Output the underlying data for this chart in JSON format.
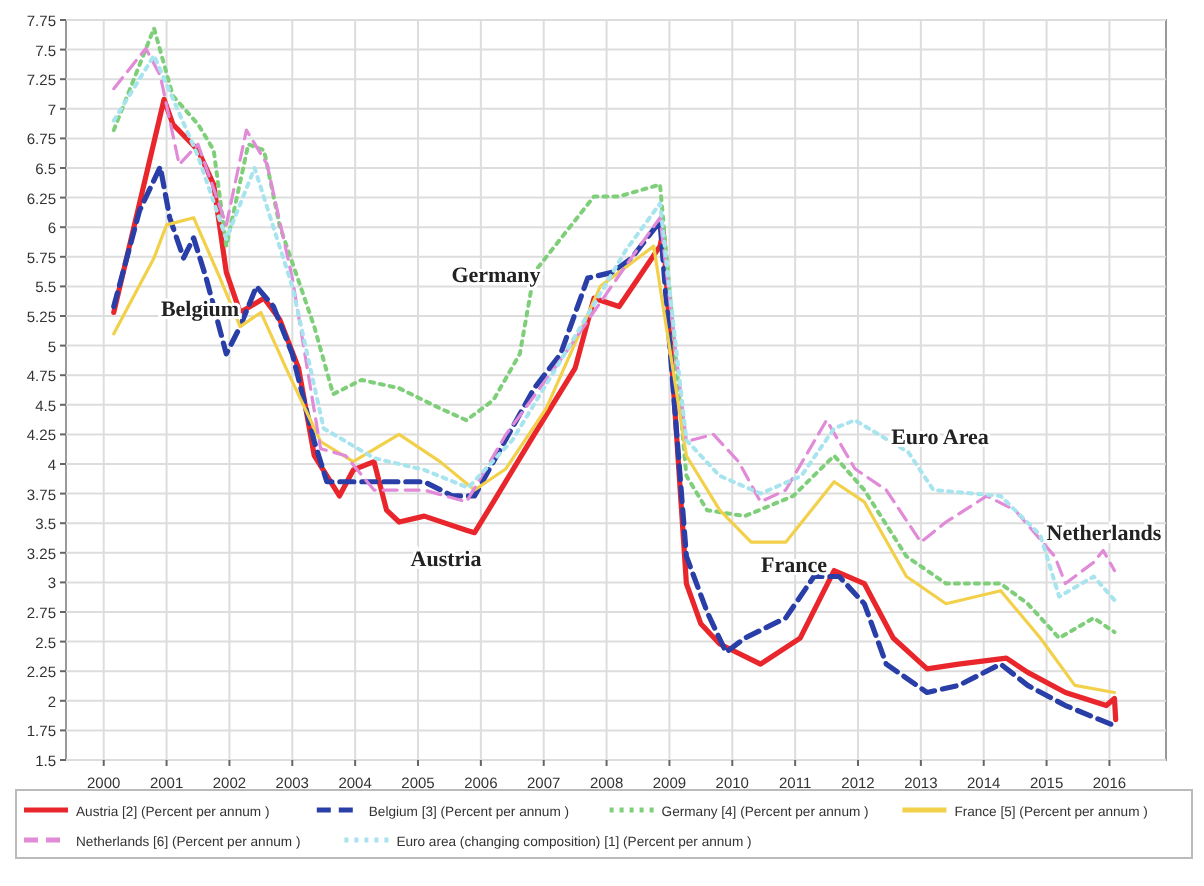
{
  "chart_data": {
    "type": "line",
    "xlim": [
      1999.4,
      2016.9
    ],
    "xticks": [
      2000,
      2001,
      2002,
      2003,
      2004,
      2005,
      2006,
      2007,
      2008,
      2009,
      2010,
      2011,
      2012,
      2013,
      2014,
      2015,
      2016
    ],
    "ylim": [
      1.5,
      7.75
    ],
    "yticks": [
      1.5,
      1.75,
      2,
      2.25,
      2.5,
      2.75,
      3,
      3.25,
      3.5,
      3.75,
      4,
      4.25,
      4.5,
      4.75,
      5,
      5.25,
      5.5,
      5.75,
      6,
      6.25,
      6.5,
      6.75,
      7,
      7.25,
      7.5,
      7.75
    ],
    "grid": true,
    "legend": "bottom",
    "marker": "none",
    "series": [
      {
        "name": "Austria [2] (Percent per annum )",
        "color": "#e8262b",
        "line_style": "solid",
        "x": [
          2000.16,
          2000.96,
          2001.1,
          2001.5,
          2001.75,
          2001.95,
          2002.17,
          2002.55,
          2002.8,
          2003.1,
          2003.35,
          2003.75,
          2003.97,
          2004.3,
          2004.5,
          2004.7,
          2005.1,
          2005.77,
          2005.9,
          2006.2,
          2006.85,
          2007.5,
          2007.8,
          2008.2,
          2008.85,
          2008.9,
          2009.27,
          2009.5,
          2009.8,
          2010.45,
          2011.08,
          2011.62,
          2012.1,
          2012.56,
          2013.1,
          2013.6,
          2014.36,
          2014.7,
          2015.3,
          2015.95,
          2016.08,
          2016.1
        ],
        "values": [
          5.28,
          7.08,
          6.87,
          6.65,
          6.36,
          5.62,
          5.28,
          5.4,
          5.22,
          4.81,
          4.07,
          3.73,
          3.95,
          4.02,
          3.61,
          3.51,
          3.56,
          3.44,
          3.42,
          3.68,
          4.25,
          4.81,
          5.4,
          5.33,
          5.84,
          5.96,
          2.99,
          2.65,
          2.48,
          2.31,
          2.53,
          3.1,
          2.99,
          2.53,
          2.27,
          2.31,
          2.36,
          2.24,
          2.07,
          1.96,
          2.02,
          1.84
        ]
      },
      {
        "name": "Belgium [3] (Percent per annum )",
        "color": "#2a3ea8",
        "line_style": "dashed",
        "x": [
          2000.16,
          2000.57,
          2000.9,
          2001.05,
          2001.27,
          2001.43,
          2001.63,
          2001.95,
          2002.17,
          2002.43,
          2002.7,
          2003.0,
          2003.35,
          2003.55,
          2004.1,
          2004.7,
          2005.1,
          2005.55,
          2005.9,
          2006.2,
          2006.85,
          2007.27,
          2007.7,
          2008.1,
          2008.4,
          2008.85,
          2009.27,
          2009.6,
          2009.9,
          2010.2,
          2010.85,
          2011.3,
          2011.7,
          2012.1,
          2012.45,
          2013.1,
          2013.6,
          2014.27,
          2014.7,
          2015.3,
          2016.08
        ],
        "values": [
          5.33,
          6.14,
          6.51,
          6.08,
          5.74,
          5.91,
          5.57,
          4.93,
          5.16,
          5.5,
          5.33,
          4.93,
          4.19,
          3.85,
          3.85,
          3.85,
          3.85,
          3.73,
          3.73,
          4.02,
          4.64,
          4.93,
          5.57,
          5.62,
          5.74,
          6.05,
          3.22,
          2.75,
          2.41,
          2.53,
          2.7,
          3.05,
          3.05,
          2.82,
          2.31,
          2.07,
          2.13,
          2.31,
          2.13,
          1.96,
          1.79
        ]
      },
      {
        "name": "Germany [4] (Percent per annum )",
        "color": "#7fcf7a",
        "line_style": "dotted",
        "x": [
          2000.16,
          2000.8,
          2001.1,
          2001.5,
          2001.75,
          2001.95,
          2002.3,
          2002.55,
          2002.8,
          2003.35,
          2003.65,
          2004.1,
          2004.7,
          2005.35,
          2005.77,
          2006.2,
          2006.62,
          2006.85,
          2007.8,
          2008.2,
          2008.85,
          2009.27,
          2009.6,
          2010.2,
          2010.97,
          2011.62,
          2012.1,
          2012.77,
          2013.4,
          2014.27,
          2014.7,
          2015.2,
          2015.75,
          2016.08
        ],
        "values": [
          6.82,
          7.68,
          7.11,
          6.87,
          6.65,
          5.84,
          6.7,
          6.65,
          6.01,
          5.16,
          4.59,
          4.71,
          4.64,
          4.47,
          4.37,
          4.54,
          4.93,
          5.62,
          6.26,
          6.26,
          6.36,
          3.9,
          3.61,
          3.56,
          3.73,
          4.07,
          3.78,
          3.22,
          2.99,
          2.99,
          2.82,
          2.53,
          2.7,
          2.58
        ]
      },
      {
        "name": "France [5] (Percent per annum )",
        "color": "#f2d04a",
        "line_style": "solid",
        "x": [
          2000.16,
          2000.8,
          2001.0,
          2001.43,
          2001.85,
          2002.17,
          2002.5,
          2002.9,
          2003.45,
          2003.97,
          2004.7,
          2005.35,
          2005.9,
          2006.4,
          2007.04,
          2007.9,
          2008.75,
          2009.27,
          2009.8,
          2010.3,
          2010.85,
          2011.62,
          2012.1,
          2012.77,
          2013.4,
          2014.27,
          2014.9,
          2015.45,
          2016.08
        ],
        "values": [
          5.1,
          5.74,
          6.02,
          6.08,
          5.57,
          5.16,
          5.28,
          4.81,
          4.19,
          4.02,
          4.25,
          4.02,
          3.78,
          3.96,
          4.47,
          5.5,
          5.84,
          4.07,
          3.61,
          3.34,
          3.34,
          3.85,
          3.68,
          3.05,
          2.82,
          2.93,
          2.53,
          2.13,
          2.07
        ]
      },
      {
        "name": "Netherlands [6] (Percent per annum )",
        "color": "#e08ad8",
        "line_style": "dashed",
        "x": [
          2000.16,
          2000.67,
          2000.9,
          2001.2,
          2001.5,
          2001.95,
          2002.27,
          2002.6,
          2003.0,
          2003.45,
          2003.85,
          2004.3,
          2005.1,
          2005.77,
          2006.4,
          2007.27,
          2008.3,
          2008.85,
          2009.27,
          2009.7,
          2010.1,
          2010.45,
          2010.85,
          2011.5,
          2011.95,
          2012.45,
          2013.0,
          2013.4,
          2014.05,
          2014.5,
          2015.13,
          2015.3,
          2015.75,
          2015.9,
          2016.08
        ],
        "values": [
          7.17,
          7.51,
          7.28,
          6.53,
          6.7,
          6.02,
          6.82,
          6.53,
          5.57,
          4.13,
          4.07,
          3.78,
          3.78,
          3.68,
          4.25,
          4.88,
          5.67,
          6.08,
          4.19,
          4.25,
          4.02,
          3.68,
          3.78,
          4.37,
          3.96,
          3.78,
          3.34,
          3.51,
          3.73,
          3.61,
          3.22,
          2.99,
          3.17,
          3.27,
          3.1
        ]
      },
      {
        "name": "Euro area (changing composition) [1] (Percent per annum )",
        "color": "#a8e4ee",
        "line_style": "dotted",
        "x": [
          2000.16,
          2000.8,
          2001.5,
          2001.95,
          2002.4,
          2003.0,
          2003.5,
          2004.3,
          2005.1,
          2005.8,
          2006.5,
          2007.3,
          2008.3,
          2008.85,
          2009.27,
          2009.8,
          2010.45,
          2011.1,
          2011.62,
          2011.95,
          2012.8,
          2013.2,
          2014.27,
          2014.9,
          2015.2,
          2015.75,
          2016.08
        ],
        "values": [
          6.9,
          7.45,
          6.6,
          5.9,
          6.5,
          5.5,
          4.3,
          4.05,
          3.95,
          3.8,
          4.2,
          4.9,
          5.8,
          6.2,
          4.2,
          3.9,
          3.75,
          3.9,
          4.3,
          4.37,
          4.1,
          3.78,
          3.73,
          3.4,
          2.88,
          3.05,
          2.85
        ]
      }
    ],
    "annotations": [
      "Belgium",
      "Germany",
      "Austria",
      "France",
      "Euro Area",
      "Netherlands"
    ]
  }
}
